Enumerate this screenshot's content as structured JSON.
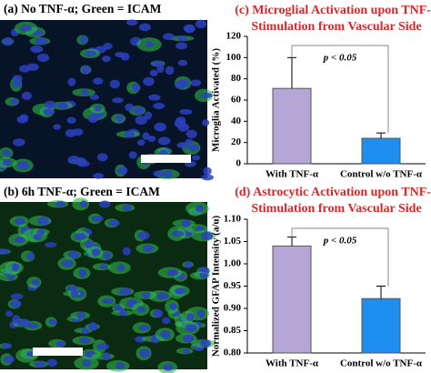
{
  "panels": [
    {
      "label": "(a) No TNF-α; Green = ICAM"
    },
    {
      "label": "(b) 6h TNF-α; Green = ICAM"
    }
  ],
  "chart_data": [
    {
      "type": "bar",
      "title": [
        "(c) Microglial Activation upon TNF-α",
        "Stimulation from Vascular Side"
      ],
      "y_label": "Microglia Activated (%)",
      "categories": [
        "With TNF-α",
        "Control w/o TNF-α"
      ],
      "values": [
        71,
        24
      ],
      "errors": [
        29,
        5
      ],
      "colors": [
        "#b4a7d6",
        "#1e8ff0"
      ],
      "annotation": "p < 0.05",
      "ylim": [
        0,
        120
      ],
      "yticks": [
        0,
        20,
        40,
        60,
        80,
        100,
        120
      ]
    },
    {
      "type": "bar",
      "title": [
        "(d) Astrocytic Activation upon TNF-α",
        "Stimulation from Vascular Side"
      ],
      "y_label": "Normalized GFAP Intensity (a/u)",
      "categories": [
        "With TNF-α",
        "Control w/o TNF-α"
      ],
      "values": [
        1.04,
        0.922
      ],
      "errors": [
        0.02,
        0.028
      ],
      "colors": [
        "#b4a7d6",
        "#1e8ff0"
      ],
      "annotation": "p < 0.05",
      "ylim": [
        0.8,
        1.1
      ],
      "yticks": [
        {
          "value": 0.8,
          "label": "0.80"
        },
        {
          "value": 0.85,
          "label": "0.85"
        },
        {
          "value": 0.9,
          "label": "0.90"
        },
        {
          "value": 0.95,
          "label": "0.95"
        },
        {
          "value": 1.0,
          "label": "1.00"
        },
        {
          "value": 1.05,
          "label": "1.05"
        },
        {
          "value": 1.1,
          "label": "1.10"
        }
      ]
    }
  ]
}
